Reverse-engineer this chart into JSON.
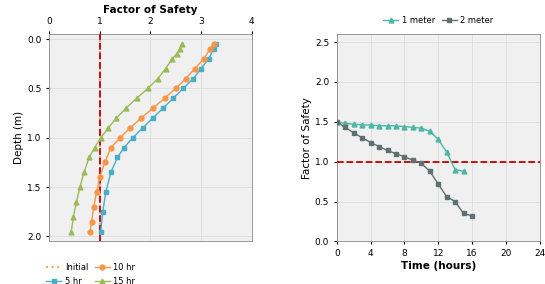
{
  "plot_a": {
    "xlabel": "Factor of Safety",
    "ylabel": "Depth (m)",
    "xlim": [
      0,
      4
    ],
    "ylim": [
      2.05,
      -0.05
    ],
    "xticks": [
      0,
      1,
      2,
      3,
      4
    ],
    "yticks": [
      0,
      0.5,
      1.0,
      1.5,
      2.0
    ],
    "dashed_line_x": 1.0,
    "dashed_line_color": "#c00000",
    "initial_color": "#f0a868",
    "series_5hr": {
      "color": "#4bacc6",
      "marker": "s",
      "x": [
        3.3,
        3.25,
        3.15,
        3.0,
        2.85,
        2.65,
        2.45,
        2.25,
        2.05,
        1.85,
        1.65,
        1.48,
        1.35,
        1.22,
        1.12,
        1.06,
        1.02
      ],
      "y": [
        0.05,
        0.1,
        0.2,
        0.3,
        0.4,
        0.5,
        0.6,
        0.7,
        0.8,
        0.9,
        1.0,
        1.1,
        1.2,
        1.35,
        1.55,
        1.75,
        1.95
      ]
    },
    "series_10hr": {
      "color": "#f79646",
      "marker": "o",
      "x": [
        3.25,
        3.18,
        3.05,
        2.88,
        2.7,
        2.5,
        2.28,
        2.05,
        1.82,
        1.6,
        1.4,
        1.22,
        1.1,
        1.0,
        0.94,
        0.88,
        0.84,
        0.81
      ],
      "y": [
        0.05,
        0.1,
        0.2,
        0.3,
        0.4,
        0.5,
        0.6,
        0.7,
        0.8,
        0.9,
        1.0,
        1.1,
        1.25,
        1.4,
        1.55,
        1.7,
        1.85,
        1.95
      ]
    },
    "series_15hr": {
      "color": "#9bbb59",
      "marker": "^",
      "x": [
        2.62,
        2.58,
        2.52,
        2.43,
        2.3,
        2.15,
        1.95,
        1.73,
        1.52,
        1.33,
        1.17,
        1.02,
        0.9,
        0.79,
        0.69,
        0.61,
        0.54,
        0.48,
        0.44
      ],
      "y": [
        0.05,
        0.1,
        0.15,
        0.2,
        0.3,
        0.4,
        0.5,
        0.6,
        0.7,
        0.8,
        0.9,
        1.0,
        1.1,
        1.2,
        1.35,
        1.5,
        1.65,
        1.8,
        1.95
      ]
    }
  },
  "plot_b": {
    "xlabel": "Time (hours)",
    "ylabel": "Factor of Safety",
    "xlim": [
      0,
      24
    ],
    "ylim": [
      0,
      2.6
    ],
    "xticks": [
      0,
      4,
      8,
      12,
      16,
      20,
      24
    ],
    "yticks": [
      0,
      0.5,
      1.0,
      1.5,
      2.0,
      2.5
    ],
    "dashed_line_y": 1.0,
    "dashed_line_color": "#c00000",
    "series_1m": {
      "color": "#4db6a4",
      "marker": "^",
      "x": [
        0,
        1,
        2,
        3,
        4,
        5,
        6,
        7,
        8,
        9,
        10,
        11,
        12,
        13,
        14,
        15
      ],
      "y": [
        1.5,
        1.48,
        1.47,
        1.46,
        1.46,
        1.45,
        1.45,
        1.45,
        1.44,
        1.43,
        1.42,
        1.38,
        1.28,
        1.12,
        0.9,
        0.88
      ]
    },
    "series_2m": {
      "color": "#607070",
      "marker": "s",
      "x": [
        0,
        1,
        2,
        3,
        4,
        5,
        6,
        7,
        8,
        9,
        10,
        11,
        12,
        13,
        14,
        15,
        16
      ],
      "y": [
        1.5,
        1.43,
        1.36,
        1.3,
        1.24,
        1.19,
        1.14,
        1.1,
        1.06,
        1.02,
        0.98,
        0.88,
        0.72,
        0.56,
        0.5,
        0.35,
        0.32
      ]
    }
  },
  "bg_color": "#f0f0f0",
  "grid_color": "#d8d8d8"
}
